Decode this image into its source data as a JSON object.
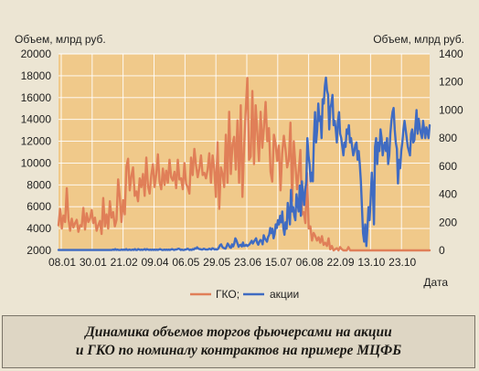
{
  "chart_data": {
    "type": "line",
    "ylabel_left": "Объем, млрд руб.",
    "ylabel_right": "Объем, млрд руб.",
    "xlabel": "Дата",
    "x_ticks": [
      "08.01",
      "30.01",
      "21.02",
      "09.04",
      "06.05",
      "29.05",
      "23.06",
      "15.07",
      "06.08",
      "22.09",
      "13.10",
      "23.10"
    ],
    "y_left_ticks": [
      2000,
      4000,
      6000,
      8000,
      10000,
      12000,
      14000,
      16000,
      18000,
      20000
    ],
    "y_right_ticks": [
      0,
      200,
      400,
      600,
      800,
      1000,
      1200,
      1400
    ],
    "ylim_left": [
      2000,
      20000
    ],
    "ylim_right": [
      0,
      1400
    ],
    "grid": true,
    "legend_position": "bottom-center",
    "series": [
      {
        "name": "ГКО;",
        "axis": "left",
        "color": "#e07f58",
        "values": [
          4300,
          5800,
          4000,
          5200,
          4600,
          7700,
          4900,
          3800,
          4900,
          4100,
          4500,
          4800,
          3700,
          4300,
          4200,
          5900,
          3900,
          5400,
          4600,
          4900,
          5700,
          4500,
          5000,
          3800,
          4300,
          4700,
          3500,
          6800,
          4200,
          5300,
          4000,
          6500,
          5000,
          5500,
          4200,
          4800,
          8500,
          6900,
          4600,
          6600,
          5300,
          9700,
          10400,
          7500,
          8800,
          9600,
          7000,
          7400,
          6500,
          8600,
          7800,
          9000,
          7000,
          10500,
          7900,
          7200,
          8900,
          9900,
          7800,
          9000,
          10800,
          8300,
          7600,
          9500,
          8000,
          9300,
          8200,
          10300,
          8700,
          8400,
          9200,
          7700,
          10300,
          8500,
          8600,
          7600,
          10000,
          8100,
          7800,
          7200,
          10500,
          8900,
          11300,
          9800,
          8700,
          9500,
          10700,
          8900,
          9100,
          8600,
          9400,
          10900,
          8200,
          10700,
          9500,
          6900,
          11900,
          5800,
          9600,
          9000,
          7800,
          12600,
          8200,
          14700,
          9000,
          11700,
          12400,
          9400,
          13900,
          8200,
          15300,
          6900,
          11400,
          14800,
          17800,
          10300,
          10600,
          16600,
          9900,
          15300,
          12800,
          10200,
          14700,
          11400,
          13300,
          15600,
          12000,
          13200,
          9200,
          8300,
          12600,
          11800,
          10200,
          11600,
          7500,
          10900,
          12500,
          11300,
          9600,
          10300,
          13700,
          6500,
          12000,
          9800,
          7600,
          9300,
          11200,
          5300,
          5500,
          4500,
          9100,
          4000,
          4200,
          2900,
          3600,
          3300,
          2900,
          3200,
          2700,
          3300,
          2500,
          2700,
          2400,
          3100,
          2100,
          2400,
          2000,
          2100,
          2200,
          2000,
          2300,
          2100,
          2000,
          2000,
          2000,
          2300,
          2000,
          2000,
          2000,
          2000,
          2000,
          2000,
          2000,
          2000,
          2000,
          2000,
          2000,
          2000,
          2000,
          2000,
          2000,
          2000,
          2000,
          2000,
          2000,
          2000,
          2000,
          2000,
          2000,
          2000,
          2000,
          2000,
          2000,
          2000,
          2000,
          2000,
          2000,
          2000,
          2000,
          2000,
          2000,
          2000,
          2000,
          2000,
          2000,
          2000,
          2000,
          2000,
          2000,
          2000,
          2000,
          2000,
          2000,
          2000,
          2000
        ]
      },
      {
        "name": "акции",
        "axis": "right",
        "color": "#3f6bc2",
        "values": [
          3,
          3,
          3,
          3,
          3,
          3,
          3,
          3,
          3,
          3,
          3,
          3,
          3,
          3,
          3,
          3,
          3,
          3,
          3,
          3,
          3,
          3,
          3,
          3,
          3,
          3,
          3,
          3,
          3,
          3,
          3,
          3,
          3,
          3,
          3,
          3,
          3,
          3,
          3,
          3,
          3,
          3,
          3,
          3,
          3,
          3,
          3,
          3,
          3,
          3,
          6,
          3,
          9,
          3,
          6,
          3,
          3,
          3,
          6,
          3,
          6,
          3,
          9,
          3,
          3,
          6,
          3,
          3,
          6,
          3,
          9,
          3,
          3,
          9,
          6,
          3,
          6,
          3,
          6,
          9,
          3,
          9,
          6,
          3,
          6,
          3,
          6,
          3,
          6,
          3,
          6,
          3,
          6,
          9,
          6,
          3,
          3,
          6,
          3,
          6,
          3,
          6,
          3,
          6,
          9,
          6,
          3,
          6,
          6,
          9,
          12,
          9,
          3,
          6,
          3,
          3,
          6,
          6,
          12,
          9,
          3,
          6,
          3,
          9,
          6,
          15,
          12,
          22,
          13,
          9,
          9,
          6,
          6,
          12,
          9,
          6,
          6,
          6,
          12,
          9,
          6,
          15,
          12,
          6,
          9,
          6,
          9,
          22,
          37,
          43,
          25,
          18,
          15,
          12,
          28,
          49,
          37,
          22,
          18,
          43,
          28,
          49,
          86,
          71,
          49,
          25,
          37,
          40,
          28,
          56,
          31,
          34,
          40,
          31,
          37,
          43,
          56,
          68,
          49,
          62,
          74,
          86,
          55,
          40,
          62,
          74,
          68,
          43,
          108,
          86,
          74,
          62,
          95,
          111,
          160,
          123,
          154,
          86,
          117,
          185,
          160,
          215,
          185,
          246,
          200,
          277,
          160,
          111,
          200,
          154,
          338,
          269,
          185,
          431,
          277,
          308,
          246,
          215,
          400,
          338,
          277,
          462,
          246,
          492,
          400,
          323,
          431,
          492,
          800,
          677,
          615,
          492,
          554,
          492,
          800,
          985,
          769,
          862,
          1046,
          923,
          954,
          800,
          1077,
          1046,
          1169,
          1231,
          1138,
          1108,
          862,
          1015,
          1046,
          1108,
          892,
          923,
          862,
          769,
          923,
          985,
          831,
          800,
          738,
          677,
          769,
          738,
          862,
          831,
          892,
          769,
          800,
          738,
          677,
          708,
          754,
          769,
          646,
          708,
          615,
          492,
          308,
          123,
          62,
          185,
          31,
          154,
          308,
          215,
          369,
          554,
          431,
          185,
          738,
          800,
          615,
          769,
          708,
          862,
          800,
          677,
          738,
          769,
          708,
          800,
          615,
          677,
          831,
          923,
          985,
          1015,
          862,
          769,
          723,
          477,
          646,
          585,
          708,
          769,
          862,
          923,
          862,
          800,
          738,
          708,
          677,
          831,
          862,
          769,
          785,
          892,
          1000,
          831,
          938,
          877,
          831,
          800,
          923,
          862,
          800,
          877,
          846,
          800,
          892
        ]
      }
    ]
  },
  "legend": {
    "items": [
      {
        "label": "ГКО;",
        "color": "#e07f58"
      },
      {
        "label": "акции",
        "color": "#3f6bc2"
      }
    ]
  },
  "caption": {
    "line1": "Динамика объемов торгов фьючерсами на акции",
    "line2": "и ГКО по номиналу контрактов на примере МЦФБ"
  }
}
